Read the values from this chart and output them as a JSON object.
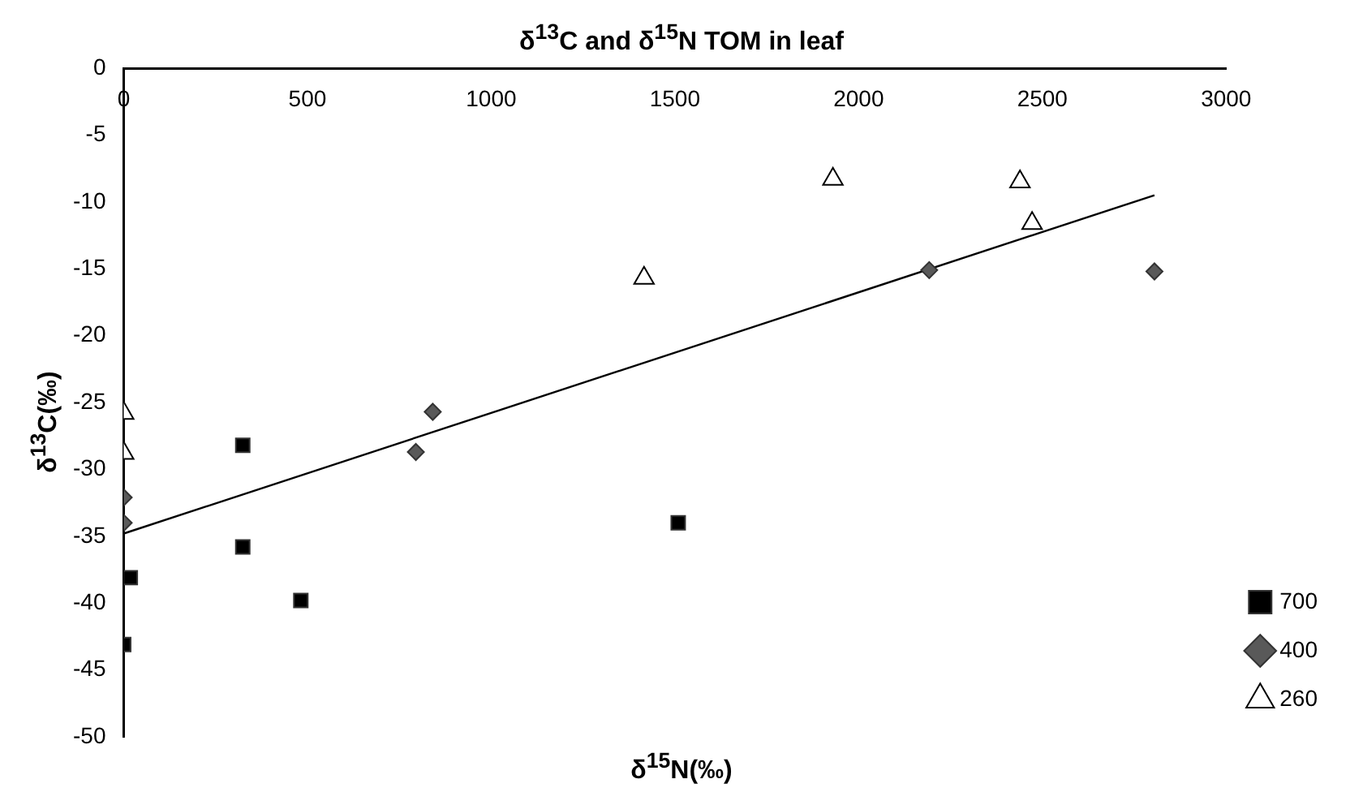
{
  "chart_data": {
    "type": "scatter",
    "title": "δ$^{13}$C and δ$^{15}$N TOM in leaf",
    "xlabel": "δ$^{15}$N(‰)",
    "ylabel": "δ$^{13}$C(‰)",
    "xlim": [
      0,
      3000
    ],
    "xticks": [
      0,
      500,
      1000,
      1500,
      2000,
      2500,
      3000
    ],
    "ylim": [
      -50,
      0
    ],
    "yticks": [
      0,
      -5,
      -10,
      -15,
      -20,
      -25,
      -30,
      -35,
      -40,
      -45,
      -50
    ],
    "grid": false,
    "legend": "bottom right",
    "series": [
      {
        "name": "700",
        "color": "#000000",
        "marker": "square",
        "x": [
          0,
          18,
          324,
          324,
          482,
          1509
        ],
        "values": [
          -43.1,
          -38.1,
          -28.2,
          -35.8,
          -39.8,
          -34.0
        ]
      },
      {
        "name": "400",
        "color": "#595959",
        "marker": "diamond",
        "x": [
          0,
          0,
          795,
          841,
          2192,
          2805
        ],
        "values": [
          -32.1,
          -34.0,
          -28.7,
          -25.7,
          -15.1,
          -15.2
        ]
      },
      {
        "name": "260",
        "color": "#ffffff",
        "marker": "triangle",
        "x": [
          0,
          0,
          1416,
          1930,
          2439,
          2472
        ],
        "values": [
          -25.8,
          -28.8,
          -15.7,
          -8.3,
          -8.5,
          -11.6
        ]
      },
      {
        "type": "line",
        "color": "#000000",
        "marker": "none",
        "x": [
          0,
          2805
        ],
        "values": [
          -34.8,
          -9.5
        ]
      }
    ]
  }
}
